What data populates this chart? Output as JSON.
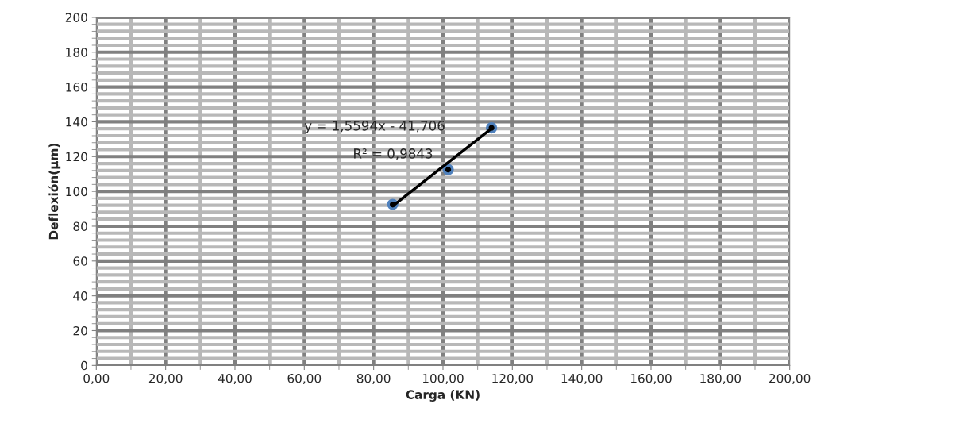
{
  "chart_data": {
    "type": "scatter",
    "xlabel": "Carga (KN)",
    "ylabel": "Deflexión(µm)",
    "xlim": [
      0,
      200
    ],
    "xticks": [
      {
        "value": 0,
        "label": "0,00"
      },
      {
        "value": 20,
        "label": "20,00"
      },
      {
        "value": 40,
        "label": "40,00"
      },
      {
        "value": 60,
        "label": "60,00"
      },
      {
        "value": 80,
        "label": "80,00"
      },
      {
        "value": 100,
        "label": "100,00"
      },
      {
        "value": 120,
        "label": "120,00"
      },
      {
        "value": 140,
        "label": "140,00"
      },
      {
        "value": 160,
        "label": "160,00"
      },
      {
        "value": 180,
        "label": "180,00"
      },
      {
        "value": 200,
        "label": "200,00"
      }
    ],
    "ylim": [
      0,
      200
    ],
    "yticks": [
      0,
      20,
      40,
      60,
      80,
      100,
      120,
      140,
      160,
      180,
      200
    ],
    "grid": true,
    "series": [
      {
        "marker": "circle",
        "color": "#4f81bd",
        "x": [
          85.5,
          101.5,
          114
        ],
        "values": [
          92.5,
          112.5,
          136.5
        ]
      },
      {
        "type": "line",
        "color": "#000000",
        "x": [
          85.5,
          114
        ],
        "values": [
          91.6,
          136.1
        ]
      }
    ],
    "annotations": [
      "y = 1,5594x - 41,706",
      "R² = 0,9843"
    ]
  }
}
